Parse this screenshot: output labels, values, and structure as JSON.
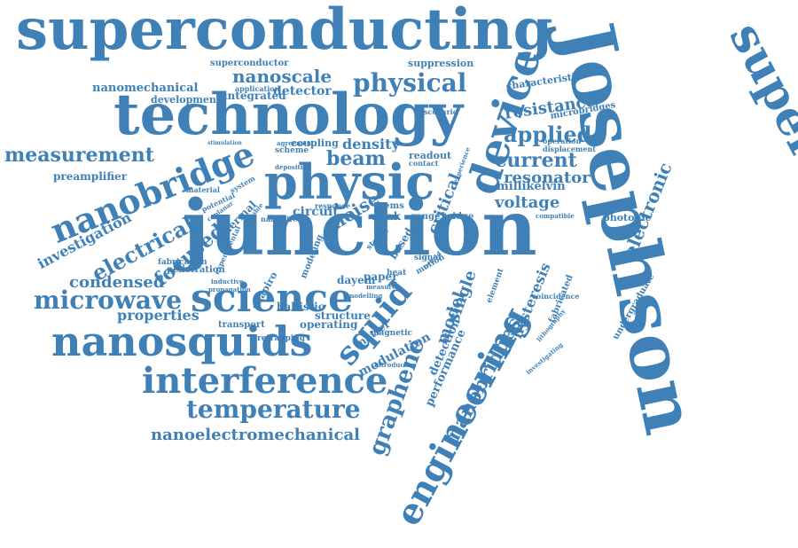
{
  "colors": {
    "word": "#3f80b6",
    "background": "#ffffff"
  },
  "words": [
    "superconducting",
    "Josephson",
    "superconductivity",
    "junction",
    "technology",
    "nanobridge",
    "physic",
    "science",
    "device",
    "nanosquids",
    "interference",
    "temperature",
    "nanoelectromechanical",
    "engineering",
    "graphene",
    "squid",
    "microwave",
    "measurement",
    "physical",
    "nanoscale",
    "electrical",
    "focused",
    "condensed",
    "properties",
    "investigation",
    "current",
    "applied",
    "resistance",
    "resonator",
    "voltage",
    "millikelvin",
    "electronic",
    "undergraduate",
    "nanobridges",
    "hysteresis",
    "performance",
    "detection",
    "modulation",
    "single",
    "model",
    "critical",
    "beam",
    "density",
    "noise",
    "circuit",
    "nanomechanical",
    "development",
    "integrated",
    "detector",
    "application",
    "superconductor",
    "suppression",
    "characteristic",
    "microbridges",
    "preamplifier",
    "thermal",
    "structure",
    "operating",
    "matter",
    "magnetic",
    "transport",
    "retrapping",
    "ballistic",
    "shapiro",
    "penetration",
    "fabrication",
    "readout",
    "photonic",
    "fabricated",
    "coincidence",
    "element",
    "nems",
    "range",
    "bridge",
    "weak",
    "coupling",
    "scheme",
    "agreement",
    "material",
    "potential",
    "system",
    "propagation",
    "inductive",
    "experimental",
    "modeling",
    "dayem",
    "paper",
    "measure",
    "introducing",
    "lithography",
    "investigating",
    "signal",
    "motion",
    "based",
    "heat",
    "step",
    "hybrid",
    "gate",
    "contact",
    "response",
    "displacement",
    "operation",
    "compatible",
    "experience",
    "scenario",
    "stimulation",
    "deposition",
    "nanowire",
    "coplanar",
    "scalable",
    "modelling"
  ]
}
